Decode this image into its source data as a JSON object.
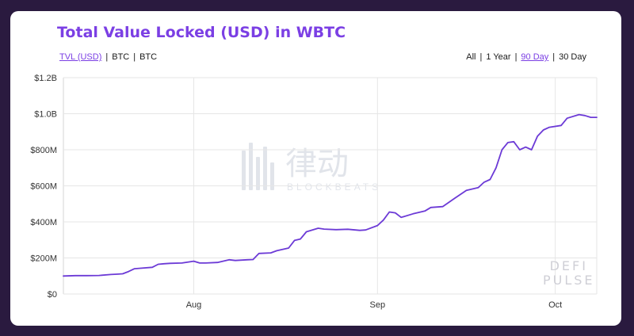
{
  "header": {
    "title": "Total Value Locked (USD) in WBTC",
    "metric_tabs": [
      {
        "label": "TVL (USD)",
        "active": true
      },
      {
        "label": "BTC",
        "active": false
      },
      {
        "label": "BTC",
        "active": false
      }
    ],
    "range_tabs": [
      {
        "label": "All",
        "active": false
      },
      {
        "label": "1 Year",
        "active": false
      },
      {
        "label": "90 Day",
        "active": true
      },
      {
        "label": "30 Day",
        "active": false
      }
    ]
  },
  "watermarks": {
    "defi_line1": "DEFI",
    "defi_line2": "PULSE",
    "center_cn": "律动",
    "center_en": "BLOCKBEATS"
  },
  "colors": {
    "accent": "#7b3fe4",
    "line": "#6c3ad6",
    "grid": "#e6e6e6",
    "background": "#2a1a3f"
  },
  "chart_data": {
    "type": "line",
    "title": "Total Value Locked (USD) in WBTC",
    "xlabel": "",
    "ylabel": "",
    "ylim": [
      0,
      1200
    ],
    "y_unit": "USD (millions)",
    "yticks": [
      0,
      200,
      400,
      600,
      800,
      1000,
      1200
    ],
    "ytick_labels": [
      "$0",
      "$200M",
      "$400M",
      "$600M",
      "$800M",
      "$1.0B",
      "$1.2B"
    ],
    "xlim": [
      "2020-07-10",
      "2020-10-08"
    ],
    "xticks": [
      "2020-08-01",
      "2020-09-01",
      "2020-10-01"
    ],
    "xtick_labels": [
      "Aug",
      "Sep",
      "Oct"
    ],
    "grid": true,
    "series": [
      {
        "name": "",
        "x": [
          "2020-07-10",
          "2020-07-12",
          "2020-07-14",
          "2020-07-16",
          "2020-07-18",
          "2020-07-19",
          "2020-07-20",
          "2020-07-21",
          "2020-07-22",
          "2020-07-23",
          "2020-07-25",
          "2020-07-26",
          "2020-07-27",
          "2020-07-28",
          "2020-07-30",
          "2020-08-01",
          "2020-08-02",
          "2020-08-03",
          "2020-08-05",
          "2020-08-07",
          "2020-08-08",
          "2020-08-10",
          "2020-08-11",
          "2020-08-12",
          "2020-08-14",
          "2020-08-15",
          "2020-08-17",
          "2020-08-18",
          "2020-08-19",
          "2020-08-20",
          "2020-08-22",
          "2020-08-23",
          "2020-08-25",
          "2020-08-27",
          "2020-08-29",
          "2020-08-30",
          "2020-09-01",
          "2020-09-02",
          "2020-09-03",
          "2020-09-04",
          "2020-09-05",
          "2020-09-07",
          "2020-09-09",
          "2020-09-10",
          "2020-09-12",
          "2020-09-14",
          "2020-09-16",
          "2020-09-18",
          "2020-09-19",
          "2020-09-20",
          "2020-09-21",
          "2020-09-22",
          "2020-09-23",
          "2020-09-24",
          "2020-09-25",
          "2020-09-26",
          "2020-09-27",
          "2020-09-28",
          "2020-09-29",
          "2020-09-30",
          "2020-10-02",
          "2020-10-03",
          "2020-10-05",
          "2020-10-06",
          "2020-10-07",
          "2020-10-08"
        ],
        "values": [
          100,
          102,
          102,
          103,
          108,
          110,
          112,
          125,
          140,
          143,
          148,
          165,
          168,
          170,
          172,
          182,
          172,
          172,
          175,
          190,
          186,
          190,
          191,
          225,
          228,
          240,
          255,
          297,
          305,
          345,
          365,
          360,
          357,
          359,
          353,
          355,
          380,
          410,
          455,
          450,
          425,
          445,
          460,
          480,
          485,
          530,
          575,
          590,
          620,
          635,
          700,
          800,
          840,
          845,
          800,
          815,
          800,
          875,
          910,
          925,
          935,
          975,
          995,
          990,
          980,
          980
        ]
      }
    ]
  }
}
